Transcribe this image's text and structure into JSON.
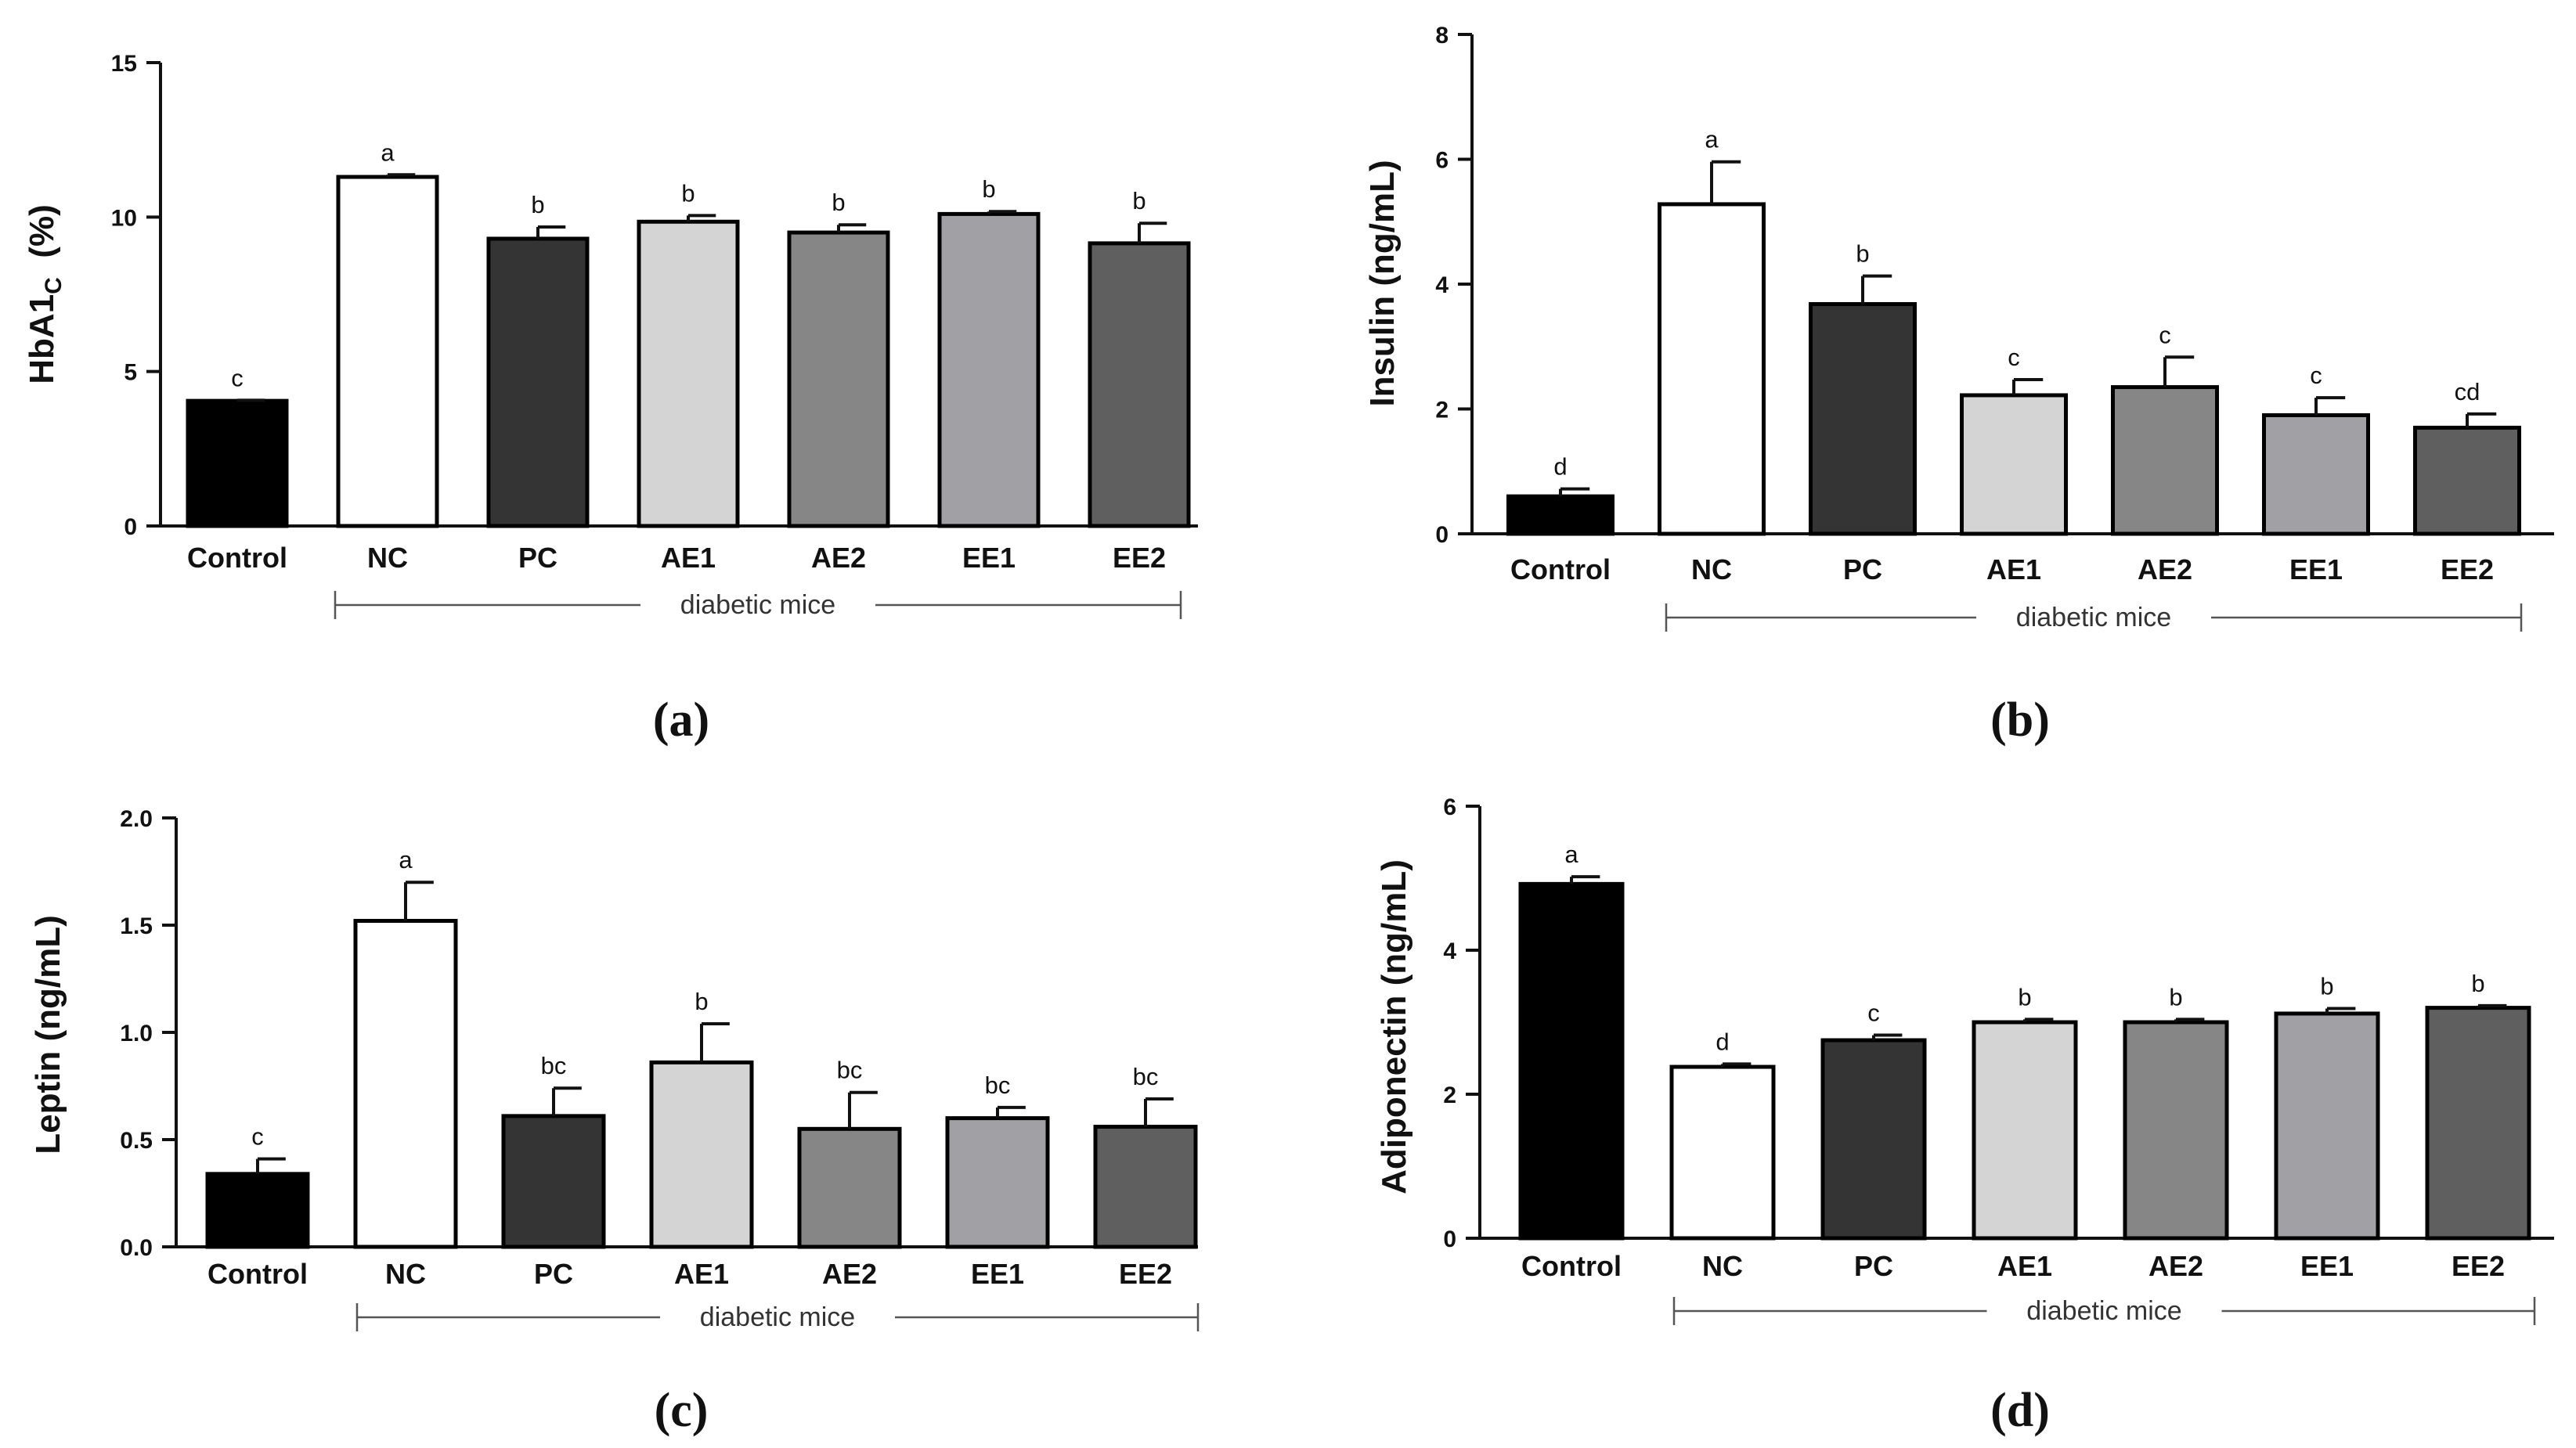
{
  "colors": {
    "Control": "#000000",
    "NC": "#ffffff",
    "PC": "#343434",
    "AE1": "#d4d4d4",
    "AE2": "#868686",
    "EE1": "#a1a1a5",
    "EE2": "#5f5f5f",
    "outline": "#000000"
  },
  "chart_data": [
    {
      "type": "bar",
      "panel_label": "(a)",
      "ylabel": "HbA1",
      "ylabel_sub": "C",
      "ylabel_unit": "(%)",
      "categories": [
        "Control",
        "NC",
        "PC",
        "AE1",
        "AE2",
        "EE1",
        "EE2"
      ],
      "values": [
        4.05,
        11.3,
        9.3,
        9.85,
        9.5,
        10.1,
        9.15
      ],
      "errors": [
        0.02,
        0.07,
        0.38,
        0.2,
        0.25,
        0.08,
        0.65
      ],
      "letters": [
        "c",
        "a",
        "b",
        "b",
        "b",
        "b",
        "b"
      ],
      "ylim": [
        0,
        15
      ],
      "yticks": [
        0,
        5,
        10,
        15
      ],
      "ytick_labels": [
        "0",
        "5",
        "10",
        "15"
      ],
      "group_label": "diabetic mice"
    },
    {
      "type": "bar",
      "panel_label": "(b)",
      "ylabel": "Insulin (ng/mL)",
      "categories": [
        "Control",
        "NC",
        "PC",
        "AE1",
        "AE2",
        "EE1",
        "EE2"
      ],
      "values": [
        0.6,
        5.28,
        3.68,
        2.22,
        2.35,
        1.9,
        1.7
      ],
      "errors": [
        0.12,
        0.68,
        0.45,
        0.25,
        0.48,
        0.28,
        0.22
      ],
      "letters": [
        "d",
        "a",
        "b",
        "c",
        "c",
        "c",
        "cd"
      ],
      "ylim": [
        0,
        8
      ],
      "yticks": [
        0,
        2,
        4,
        6,
        8
      ],
      "ytick_labels": [
        "0",
        "2",
        "4",
        "6",
        "8"
      ],
      "group_label": "diabetic mice"
    },
    {
      "type": "bar",
      "panel_label": "(c)",
      "ylabel": "Leptin (ng/mL)",
      "categories": [
        "Control",
        "NC",
        "PC",
        "AE1",
        "AE2",
        "EE1",
        "EE2"
      ],
      "values": [
        0.34,
        1.52,
        0.61,
        0.86,
        0.55,
        0.6,
        0.56
      ],
      "errors": [
        0.07,
        0.18,
        0.13,
        0.18,
        0.17,
        0.05,
        0.13
      ],
      "letters": [
        "c",
        "a",
        "bc",
        "b",
        "bc",
        "bc",
        "bc"
      ],
      "ylim": [
        0,
        2
      ],
      "yticks": [
        0,
        0.5,
        1,
        1.5,
        2
      ],
      "ytick_labels": [
        "0.0",
        "0.5",
        "1.0",
        "1.5",
        "2.0"
      ],
      "group_label": "diabetic mice"
    },
    {
      "type": "bar",
      "panel_label": "(d)",
      "ylabel": "Adiponectin (ng/mL)",
      "categories": [
        "Control",
        "NC",
        "PC",
        "AE1",
        "AE2",
        "EE1",
        "EE2"
      ],
      "values": [
        4.92,
        2.38,
        2.75,
        3.0,
        3.0,
        3.12,
        3.2
      ],
      "errors": [
        0.1,
        0.04,
        0.07,
        0.04,
        0.04,
        0.07,
        0.03
      ],
      "letters": [
        "a",
        "d",
        "c",
        "b",
        "b",
        "b",
        "b"
      ],
      "ylim": [
        0,
        6
      ],
      "yticks": [
        0,
        2,
        4,
        6
      ],
      "ytick_labels": [
        "0",
        "2",
        "4",
        "6"
      ],
      "group_label": "diabetic mice"
    }
  ]
}
